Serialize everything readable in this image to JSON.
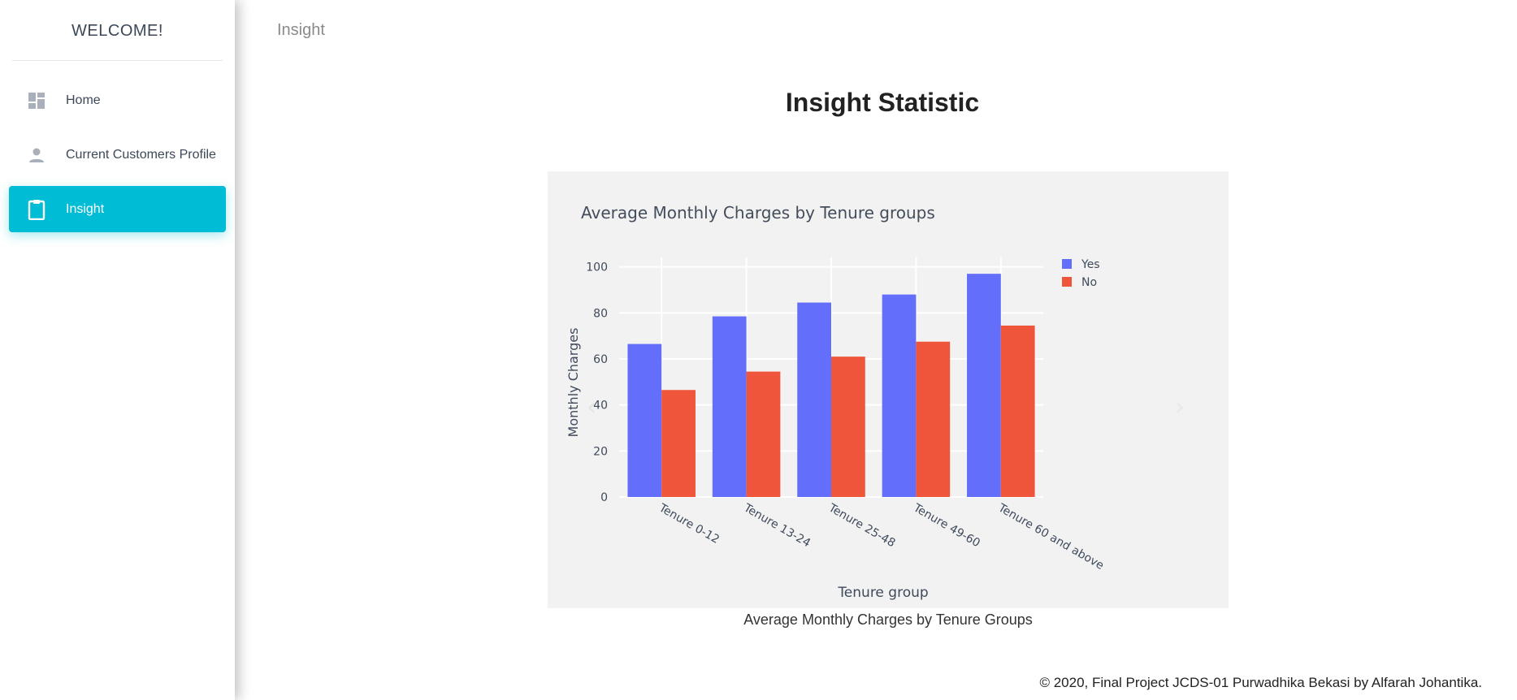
{
  "sidebar": {
    "title": "WELCOME!",
    "items": [
      {
        "label": "Home",
        "icon": "dashboard-icon",
        "active": false
      },
      {
        "label": "Current Customers Profile",
        "icon": "person-icon",
        "active": false
      },
      {
        "label": "Insight",
        "icon": "clipboard-icon",
        "active": true
      }
    ]
  },
  "header": {
    "breadcrumb": "Insight"
  },
  "main": {
    "title": "Insight Statistic",
    "caption": "Average Monthly Charges by Tenure Groups"
  },
  "footer": {
    "text": "© 2020, Final Project JCDS-01 Purwadhika Bekasi by Alfarah Johantika."
  },
  "colors": {
    "accent": "#00bcd4",
    "yes": "#636efa",
    "no": "#ef553b",
    "panel": "#f2f2f2"
  },
  "chart_data": {
    "type": "bar",
    "title": "Average Monthly Charges by Tenure groups",
    "xlabel": "Tenure group",
    "ylabel": "Monthly Charges",
    "categories": [
      "Tenure 0-12",
      "Tenure 13-24",
      "Tenure 25-48",
      "Tenure 49-60",
      "Tenure 60 and above"
    ],
    "series": [
      {
        "name": "Yes",
        "values": [
          66.5,
          78.5,
          84.5,
          88,
          97
        ],
        "color": "#636efa"
      },
      {
        "name": "No",
        "values": [
          46.5,
          54.5,
          61,
          67.5,
          74.5
        ],
        "color": "#ef553b"
      }
    ],
    "ylim": [
      0,
      102
    ],
    "yticks": [
      0,
      20,
      40,
      60,
      80,
      100
    ],
    "grid": true,
    "legend": "top-right"
  }
}
